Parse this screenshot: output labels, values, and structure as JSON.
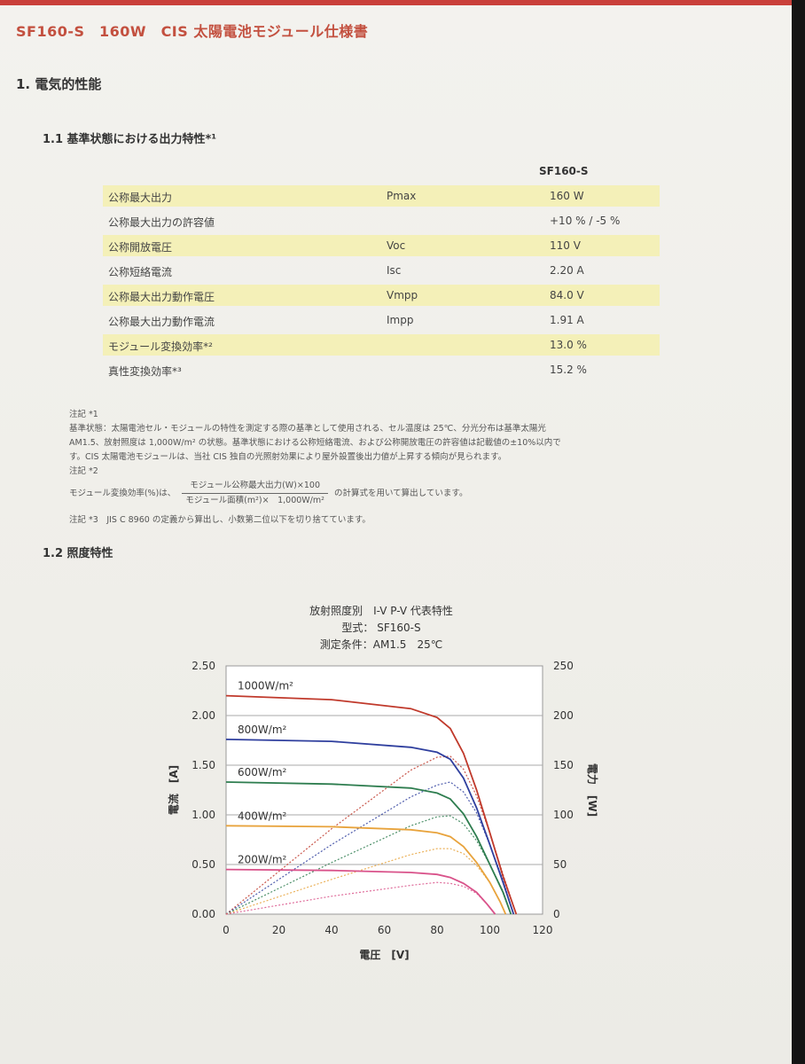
{
  "document": {
    "title": "SF160-S　160W　CIS 太陽電池モジュール仕様書",
    "section1": "1. 電気的性能",
    "section1_1": "1.1 基準状態における出力特性*¹",
    "section1_2": "1.2 照度特性",
    "column_header": "SF160-S"
  },
  "specs": [
    {
      "label": "公称最大出力",
      "symbol": "Pmax",
      "value": "160 W",
      "highlight": true
    },
    {
      "label": "公称最大出力の許容値",
      "symbol": "",
      "value": "+10 % / -5 %",
      "highlight": false
    },
    {
      "label": "公称開放電圧",
      "symbol": "Voc",
      "value": "110 V",
      "highlight": true
    },
    {
      "label": "公称短絡電流",
      "symbol": "Isc",
      "value": "2.20 A",
      "highlight": false
    },
    {
      "label": "公称最大出力動作電圧",
      "symbol": "Vmpp",
      "value": "84.0 V",
      "highlight": true
    },
    {
      "label": "公称最大出力動作電流",
      "symbol": "Impp",
      "value": "1.91 A",
      "highlight": false
    },
    {
      "label": "モジュール変換効率*²",
      "symbol": "",
      "value": "13.0 %",
      "highlight": true
    },
    {
      "label": "真性変換効率*³",
      "symbol": "",
      "value": "15.2 %",
      "highlight": false
    }
  ],
  "notes": {
    "note1_head": "注記 *1",
    "note1_line1": "基準状態：太陽電池セル・モジュールの特性を測定する際の基準として使用される、セル温度は 25℃、分光分布は基準太陽光",
    "note1_line2": "AM1.5、放射照度は 1,000W/m² の状態。基準状態における公称短絡電流、および公称開放電圧の許容値は記載値の±10%以内で",
    "note1_line3": "す。CIS 太陽電池モジュールは、当社 CIS 独自の光照射効果により屋外設置後出力値が上昇する傾向が見られます。",
    "note2_head": "注記 *2",
    "note2_prefix": "モジュール変換効率(%)は、",
    "note2_numerator": "モジュール公称最大出力(W)×100",
    "note2_denominator": "モジュール面積(m²)×　1,000W/m²",
    "note2_suffix": "の計算式を用いて算出しています。",
    "note3": "注記 *3　JIS C 8960 の定義から算出し、小数第二位以下を切り捨てています。"
  },
  "chart_data": {
    "type": "line",
    "title_lines": [
      "放射照度別　I-V P-V 代表特性",
      "型式： SF160-S",
      "測定条件：AM1.5　25℃"
    ],
    "xlabel": "電圧　[V]",
    "ylabel_left": "電流　[A]",
    "ylabel_right": "電力　[W]",
    "xlim": [
      0,
      120
    ],
    "ylim_left": [
      0,
      2.5
    ],
    "ylim_right": [
      0,
      250
    ],
    "x_ticks": [
      "0",
      "20",
      "40",
      "60",
      "80",
      "100",
      "120"
    ],
    "y_left_ticks": [
      "0.00",
      "0.50",
      "1.00",
      "1.50",
      "2.00",
      "2.50"
    ],
    "y_right_ticks": [
      "0",
      "50",
      "100",
      "150",
      "200",
      "250"
    ],
    "grid": true,
    "series": [
      {
        "name": "1000W/m²",
        "color": "#c0392b",
        "iv": [
          [
            0,
            2.2
          ],
          [
            40,
            2.16
          ],
          [
            70,
            2.07
          ],
          [
            80,
            1.98
          ],
          [
            85,
            1.87
          ],
          [
            90,
            1.62
          ],
          [
            95,
            1.25
          ],
          [
            100,
            0.82
          ],
          [
            105,
            0.38
          ],
          [
            110,
            0
          ]
        ],
        "pv": [
          [
            0,
            0
          ],
          [
            40,
            86
          ],
          [
            70,
            145
          ],
          [
            80,
            158
          ],
          [
            85,
            159
          ],
          [
            90,
            146
          ],
          [
            95,
            119
          ],
          [
            100,
            82
          ],
          [
            105,
            40
          ],
          [
            110,
            0
          ]
        ]
      },
      {
        "name": "800W/m²",
        "color": "#2f3f9e",
        "iv": [
          [
            0,
            1.76
          ],
          [
            40,
            1.74
          ],
          [
            70,
            1.68
          ],
          [
            80,
            1.63
          ],
          [
            85,
            1.56
          ],
          [
            90,
            1.37
          ],
          [
            95,
            1.07
          ],
          [
            100,
            0.7
          ],
          [
            105,
            0.32
          ],
          [
            109,
            0
          ]
        ],
        "pv": [
          [
            0,
            0
          ],
          [
            40,
            70
          ],
          [
            70,
            118
          ],
          [
            80,
            130
          ],
          [
            85,
            133
          ],
          [
            90,
            123
          ],
          [
            95,
            102
          ],
          [
            100,
            70
          ],
          [
            105,
            34
          ],
          [
            109,
            0
          ]
        ]
      },
      {
        "name": "600W/m²",
        "color": "#2e7d4f",
        "iv": [
          [
            0,
            1.33
          ],
          [
            40,
            1.31
          ],
          [
            70,
            1.27
          ],
          [
            80,
            1.22
          ],
          [
            85,
            1.16
          ],
          [
            90,
            1.01
          ],
          [
            95,
            0.78
          ],
          [
            100,
            0.5
          ],
          [
            105,
            0.22
          ],
          [
            108,
            0
          ]
        ],
        "pv": [
          [
            0,
            0
          ],
          [
            40,
            52
          ],
          [
            70,
            89
          ],
          [
            80,
            98
          ],
          [
            85,
            99
          ],
          [
            90,
            91
          ],
          [
            95,
            74
          ],
          [
            100,
            50
          ],
          [
            105,
            23
          ],
          [
            108,
            0
          ]
        ]
      },
      {
        "name": "400W/m²",
        "color": "#e8a33c",
        "iv": [
          [
            0,
            0.89
          ],
          [
            40,
            0.88
          ],
          [
            70,
            0.85
          ],
          [
            80,
            0.82
          ],
          [
            85,
            0.78
          ],
          [
            90,
            0.68
          ],
          [
            95,
            0.52
          ],
          [
            100,
            0.32
          ],
          [
            104,
            0.12
          ],
          [
            106,
            0
          ]
        ],
        "pv": [
          [
            0,
            0
          ],
          [
            40,
            35
          ],
          [
            70,
            60
          ],
          [
            80,
            66
          ],
          [
            85,
            66
          ],
          [
            90,
            61
          ],
          [
            95,
            49
          ],
          [
            100,
            32
          ],
          [
            104,
            12
          ],
          [
            106,
            0
          ]
        ]
      },
      {
        "name": "200W/m²",
        "color": "#d9528a",
        "iv": [
          [
            0,
            0.45
          ],
          [
            40,
            0.44
          ],
          [
            70,
            0.42
          ],
          [
            80,
            0.4
          ],
          [
            85,
            0.37
          ],
          [
            90,
            0.31
          ],
          [
            95,
            0.22
          ],
          [
            99,
            0.1
          ],
          [
            102,
            0
          ]
        ],
        "pv": [
          [
            0,
            0
          ],
          [
            40,
            18
          ],
          [
            70,
            29
          ],
          [
            80,
            32
          ],
          [
            85,
            31
          ],
          [
            90,
            28
          ],
          [
            95,
            21
          ],
          [
            99,
            10
          ],
          [
            102,
            0
          ]
        ]
      }
    ]
  }
}
